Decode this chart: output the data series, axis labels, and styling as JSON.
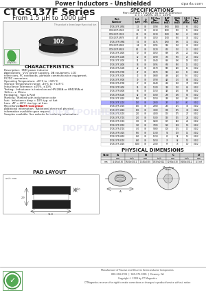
{
  "title_header": "Power Inductors - Unshielded",
  "website": "ciparts.com",
  "series_title": "CTGS137F Series",
  "series_subtitle": "From 1.5 μH to 1000 μH",
  "spec_title": "SPECIFICATIONS",
  "spec_subtitle1": "Part numbers indicate as above tolerance",
  "spec_subtitle2": "± 1 = ±20%, ±K = ±10%",
  "spec_headers": [
    "Part\nNumber",
    "Ind.\n(μH)",
    "Q\nMin",
    "D.C.Res\nMax\n(Ohms)",
    "ISAT\nMax\n(mA)",
    "IRMS\nMax\n(mA)",
    "S.R.F.\nMin\n(MHz)",
    "Test\nFreq.\n(Hz)"
  ],
  "spec_data": [
    [
      "CTGS137F-1R5K",
      "1.5",
      "30",
      "0.098",
      "1800",
      "1000",
      "65",
      "0.252"
    ],
    [
      "CTGS137F-2R2K",
      "2.2",
      "30",
      "0.110",
      "1500",
      "950",
      "55",
      "0.252"
    ],
    [
      "CTGS137F-3R3K",
      "3.3",
      "30",
      "0.130",
      "1300",
      "900",
      "45",
      "0.252"
    ],
    [
      "CTGS137F-4R7K",
      "4.7",
      "30",
      "0.150",
      "1100",
      "850",
      "38",
      "0.252"
    ],
    [
      "CTGS137F-5R6K",
      "5.6",
      "30",
      "0.175",
      "1000",
      "800",
      "32",
      "0.252"
    ],
    [
      "CTGS137F-6R8K",
      "6.8",
      "30",
      "0.195",
      "900",
      "780",
      "30",
      "0.252"
    ],
    [
      "CTGS137F-8R2K",
      "8.2",
      "30",
      "0.220",
      "850",
      "750",
      "25",
      "0.252"
    ],
    [
      "CTGS137F-100K",
      "10",
      "30",
      "0.250",
      "800",
      "700",
      "22",
      "0.252"
    ],
    [
      "CTGS137F-120K",
      "12",
      "30",
      "0.290",
      "750",
      "650",
      "20",
      "0.252"
    ],
    [
      "CTGS137F-150K",
      "15",
      "30",
      "0.340",
      "680",
      "600",
      "18",
      "0.252"
    ],
    [
      "CTGS137F-180K",
      "18",
      "30",
      "0.395",
      "630",
      "560",
      "15",
      "0.252"
    ],
    [
      "CTGS137F-220K",
      "22",
      "30",
      "0.470",
      "580",
      "520",
      "13",
      "0.252"
    ],
    [
      "CTGS137F-270K",
      "27",
      "30",
      "0.570",
      "530",
      "480",
      "11",
      "0.252"
    ],
    [
      "CTGS137F-330K",
      "33",
      "30",
      "0.680",
      "480",
      "440",
      "9.5",
      "0.252"
    ],
    [
      "CTGS137F-390K",
      "39",
      "30",
      "0.790",
      "440",
      "410",
      "8.5",
      "0.252"
    ],
    [
      "CTGS137F-470K",
      "47",
      "30",
      "0.940",
      "400",
      "380",
      "7.5",
      "0.252"
    ],
    [
      "CTGS137F-560K",
      "56",
      "30",
      "1.100",
      "360",
      "350",
      "6.5",
      "0.252"
    ],
    [
      "CTGS137F-680K",
      "68",
      "30",
      "1.350",
      "320",
      "320",
      "5.8",
      "0.252"
    ],
    [
      "CTGS137F-820K",
      "82",
      "30",
      "1.600",
      "290",
      "290",
      "5.0",
      "0.252"
    ],
    [
      "CTGS137F-101K",
      "100",
      "30",
      "1.950",
      "260",
      "260",
      "4.5",
      "0.252"
    ],
    [
      "CTGS137F-121K",
      "120",
      "30",
      "2.400",
      "235",
      "240",
      "4.0",
      "0.252"
    ],
    [
      "CTGS137F-151K",
      "150",
      "30",
      "2.900",
      "210",
      "215",
      "3.5",
      "0.252"
    ],
    [
      "CTGS137F-181K",
      "180",
      "30",
      "3.500",
      "190",
      "195",
      "3.0",
      "0.252"
    ],
    [
      "CTGS137F-221K",
      "220",
      "30",
      "4.200",
      "170",
      "175",
      "2.7",
      "0.252"
    ],
    [
      "CTGS137F-271K",
      "270",
      "30",
      "5.200",
      "150",
      "155",
      "2.4",
      "0.252"
    ],
    [
      "CTGS137F-331K",
      "330",
      "30",
      "6.400",
      "135",
      "140",
      "2.1",
      "0.252"
    ],
    [
      "CTGS137F-391K",
      "390",
      "30",
      "7.500",
      "120",
      "128",
      "1.9",
      "0.252"
    ],
    [
      "CTGS137F-471K",
      "470",
      "30",
      "9.000",
      "108",
      "115",
      "1.7",
      "0.252"
    ],
    [
      "CTGS137F-561K",
      "560",
      "30",
      "11.00",
      "96",
      "103",
      "1.5",
      "0.252"
    ],
    [
      "CTGS137F-681K",
      "680",
      "30",
      "13.50",
      "85",
      "92",
      "1.3",
      "0.252"
    ],
    [
      "CTGS137F-821K",
      "820",
      "30",
      "16.50",
      "75",
      "82",
      "1.2",
      "0.252"
    ],
    [
      "CTGS137F-102K",
      "1000",
      "30",
      "20.00",
      "67",
      "73",
      "1.0",
      "0.252"
    ]
  ],
  "highlight_row": "CTGS137F-121K",
  "char_title": "CHARACTERISTICS",
  "char_lines": [
    [
      "Description:  SMD power inductor",
      false
    ],
    [
      "Applications:  VCO power supplies, DA equipment, LCD",
      false
    ],
    [
      "televisions, PC notebooks, portable communication equipment,",
      false
    ],
    [
      "DC/DC converters.",
      false
    ],
    [
      "Operating Temperature: -40°C to +105°C",
      false
    ],
    [
      "Storage Temperature range: -40°C to +125°C",
      false
    ],
    [
      "Inductance Tolerance: ±20%, ±10%",
      false
    ],
    [
      "Testing:  Inductance is tested on an HP4284A or HP4285A at",
      false
    ],
    [
      "1kHz±, ± 1Vrms",
      false
    ],
    [
      "Packaging:  Tape & Reel",
      false
    ],
    [
      "Marking:  Marked with inductance code",
      false
    ],
    [
      "Isat:  Inductance drop = 10% typ. at Isat",
      false
    ],
    [
      "Irms:  ΔT = 40°C rise typ. at Irms",
      false
    ],
    [
      "Miscellaneous:  RoHS Compliant",
      true
    ],
    [
      "Additional information:  Additional electrical physical",
      false
    ],
    [
      "information available upon request",
      false
    ],
    [
      "Samples available. See website for ordering information.",
      false
    ]
  ],
  "rohs_color": "#cc0000",
  "phys_title": "PHYSICAL DIMENSIONS",
  "phys_col_headers": [
    "Size",
    "A",
    "",
    "B",
    "",
    "C",
    "",
    "D"
  ],
  "phys_col_widths": [
    15,
    20,
    20,
    20,
    20,
    20,
    20,
    15
  ],
  "phys_sub_labels": [
    "",
    "mm",
    "inch",
    "mm",
    "inch",
    "mm",
    "inch",
    "mm"
  ],
  "phys_data_row": [
    "mm",
    "13.46±0.30",
    "0.530±0.012",
    "13.46±0.30",
    "0.530±0.012",
    "10.90±0.30",
    "0.430±0.012",
    "4.5 ref"
  ],
  "pad_title": "PAD LAYOUT",
  "footer_lines": [
    "Manufacturer of Passive and Discrete Semiconductor Components",
    "800-694-3701  |  949-375-0901  |  Downey, CA",
    "Copyright © 2009 by CT Magnetics",
    "CTMagnetics reserves the right to make corrections or changes to product/service without notice"
  ],
  "bg_color": "#ffffff",
  "text_color": "#222222",
  "header_line_color": "#666666",
  "table_header_bg": "#cccccc",
  "table_alt_bg": "#eeeeee",
  "table_white_bg": "#ffffff",
  "highlight_bg": "#aaaaff"
}
